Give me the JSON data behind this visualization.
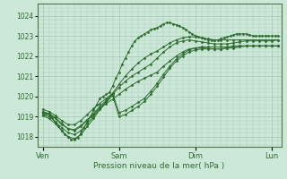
{
  "background_color": "#cce8d8",
  "plot_bg_color": "#cce8d8",
  "line_color": "#2d6e2d",
  "marker_color": "#2d6e2d",
  "grid_color": "#aacaba",
  "xlabel": "Pression niveau de la mer( hPa )",
  "yticks": [
    1018,
    1019,
    1020,
    1021,
    1022,
    1023,
    1024
  ],
  "xtick_labels": [
    "Ven",
    "Sam",
    "Dim",
    "Lun"
  ],
  "xtick_positions": [
    0,
    72,
    144,
    216
  ],
  "ylim": [
    1017.5,
    1024.6
  ],
  "xlim": [
    -5,
    225
  ],
  "lines": [
    [
      0,
      1019.2,
      3,
      1019.15,
      6,
      1019.1,
      9,
      1018.95,
      12,
      1018.7,
      15,
      1018.5,
      18,
      1018.3,
      21,
      1018.1,
      24,
      1018.0,
      27,
      1017.85,
      30,
      1017.85,
      33,
      1017.95,
      36,
      1018.15,
      39,
      1018.45,
      42,
      1018.7,
      45,
      1019.0,
      48,
      1019.3,
      51,
      1019.6,
      54,
      1019.9,
      57,
      1020.0,
      60,
      1020.1,
      63,
      1020.2,
      66,
      1020.5,
      69,
      1020.9,
      72,
      1021.2,
      75,
      1021.6,
      78,
      1021.9,
      81,
      1022.2,
      84,
      1022.5,
      87,
      1022.75,
      90,
      1022.9,
      93,
      1023.0,
      96,
      1023.1,
      99,
      1023.2,
      102,
      1023.3,
      105,
      1023.35,
      108,
      1023.4,
      111,
      1023.5,
      114,
      1023.6,
      117,
      1023.65,
      120,
      1023.65,
      123,
      1023.6,
      126,
      1023.55,
      129,
      1023.5,
      132,
      1023.4,
      135,
      1023.3,
      138,
      1023.2,
      141,
      1023.1,
      144,
      1023.0,
      147,
      1022.95,
      150,
      1022.9,
      153,
      1022.85,
      156,
      1022.8,
      159,
      1022.8,
      162,
      1022.8,
      165,
      1022.8,
      168,
      1022.85,
      171,
      1022.9,
      174,
      1022.95,
      177,
      1023.0,
      180,
      1023.05,
      183,
      1023.1,
      186,
      1023.1,
      189,
      1023.1,
      192,
      1023.1,
      195,
      1023.05,
      198,
      1023.0,
      201,
      1023.0,
      204,
      1023.0,
      207,
      1023.0,
      210,
      1023.0,
      213,
      1023.0,
      216,
      1023.0,
      219,
      1023.0,
      222,
      1023.0
    ],
    [
      0,
      1019.2,
      6,
      1019.1,
      12,
      1018.9,
      18,
      1018.6,
      24,
      1018.4,
      30,
      1018.35,
      36,
      1018.55,
      42,
      1018.85,
      48,
      1019.1,
      54,
      1019.4,
      60,
      1019.65,
      66,
      1019.85,
      72,
      1020.1,
      78,
      1020.35,
      84,
      1020.55,
      90,
      1020.75,
      96,
      1020.9,
      102,
      1021.05,
      108,
      1021.2,
      114,
      1021.5,
      120,
      1021.75,
      126,
      1022.0,
      132,
      1022.2,
      138,
      1022.35,
      144,
      1022.4,
      150,
      1022.4,
      156,
      1022.38,
      162,
      1022.35,
      168,
      1022.35,
      174,
      1022.4,
      180,
      1022.45,
      186,
      1022.5,
      192,
      1022.5,
      198,
      1022.5,
      204,
      1022.5,
      210,
      1022.5,
      216,
      1022.5,
      222,
      1022.5
    ],
    [
      0,
      1019.1,
      6,
      1019.0,
      12,
      1018.75,
      18,
      1018.45,
      24,
      1018.2,
      30,
      1018.1,
      36,
      1018.3,
      42,
      1018.65,
      48,
      1019.0,
      54,
      1019.4,
      60,
      1019.75,
      66,
      1020.1,
      72,
      1020.45,
      78,
      1020.75,
      84,
      1021.0,
      90,
      1021.2,
      96,
      1021.4,
      102,
      1021.6,
      108,
      1021.9,
      114,
      1022.2,
      120,
      1022.45,
      126,
      1022.65,
      132,
      1022.75,
      138,
      1022.8,
      144,
      1022.75,
      150,
      1022.7,
      156,
      1022.65,
      162,
      1022.6,
      168,
      1022.6,
      174,
      1022.6,
      180,
      1022.65,
      186,
      1022.7,
      192,
      1022.75,
      198,
      1022.75,
      204,
      1022.75,
      210,
      1022.75,
      216,
      1022.75,
      222,
      1022.8
    ],
    [
      0,
      1019.25,
      6,
      1019.15,
      12,
      1018.95,
      18,
      1018.65,
      24,
      1018.4,
      30,
      1018.3,
      36,
      1018.5,
      42,
      1018.8,
      48,
      1019.15,
      54,
      1019.5,
      60,
      1019.8,
      66,
      1020.15,
      72,
      1019.2,
      78,
      1019.3,
      84,
      1019.5,
      90,
      1019.7,
      96,
      1019.9,
      102,
      1020.25,
      108,
      1020.65,
      114,
      1021.1,
      120,
      1021.5,
      126,
      1021.85,
      132,
      1022.1,
      138,
      1022.3,
      144,
      1022.4,
      150,
      1022.45,
      156,
      1022.45,
      162,
      1022.45,
      168,
      1022.45,
      174,
      1022.45,
      180,
      1022.5,
      186,
      1022.5,
      192,
      1022.5,
      198,
      1022.5,
      204,
      1022.5,
      210,
      1022.5,
      216,
      1022.5,
      222,
      1022.5
    ],
    [
      0,
      1019.05,
      6,
      1018.9,
      12,
      1018.65,
      18,
      1018.3,
      24,
      1018.0,
      30,
      1017.9,
      36,
      1018.1,
      42,
      1018.5,
      48,
      1018.9,
      54,
      1019.35,
      60,
      1019.7,
      66,
      1020.05,
      72,
      1019.0,
      78,
      1019.1,
      84,
      1019.3,
      90,
      1019.5,
      96,
      1019.75,
      102,
      1020.1,
      108,
      1020.5,
      114,
      1020.95,
      120,
      1021.4,
      126,
      1021.75,
      132,
      1022.0,
      138,
      1022.2,
      144,
      1022.3,
      150,
      1022.35,
      156,
      1022.35,
      162,
      1022.35,
      168,
      1022.35,
      174,
      1022.4,
      180,
      1022.4,
      186,
      1022.45,
      192,
      1022.5,
      198,
      1022.5,
      204,
      1022.5,
      210,
      1022.5,
      216,
      1022.5,
      222,
      1022.5
    ],
    [
      0,
      1019.35,
      6,
      1019.25,
      12,
      1019.05,
      18,
      1018.8,
      24,
      1018.6,
      30,
      1018.6,
      36,
      1018.8,
      42,
      1019.1,
      48,
      1019.4,
      54,
      1019.65,
      60,
      1019.9,
      66,
      1020.15,
      72,
      1020.6,
      78,
      1021.0,
      84,
      1021.35,
      90,
      1021.65,
      96,
      1021.9,
      102,
      1022.1,
      108,
      1022.25,
      114,
      1022.45,
      120,
      1022.65,
      126,
      1022.8,
      132,
      1022.9,
      138,
      1022.95,
      144,
      1022.95,
      150,
      1022.9,
      156,
      1022.85,
      162,
      1022.8,
      168,
      1022.8,
      174,
      1022.8,
      180,
      1022.8,
      186,
      1022.8,
      192,
      1022.8,
      198,
      1022.8,
      204,
      1022.8,
      210,
      1022.8,
      216,
      1022.8,
      222,
      1022.8
    ]
  ]
}
